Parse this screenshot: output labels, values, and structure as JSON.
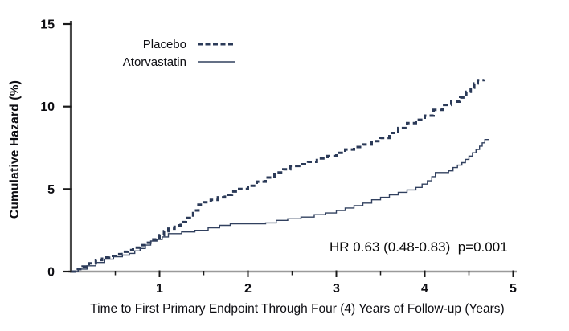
{
  "figure": {
    "background": "#ffffff"
  },
  "chart_data": {
    "type": "line",
    "subtype": "step-cumulative-hazard",
    "title": "",
    "xlabel": "Time to First Primary Endpoint Through Four (4) Years of Follow-up (Years)",
    "ylabel": "Cumulative Hazard (%)",
    "annotation": "HR 0.63 (0.48-0.83)  p=0.001",
    "xlim": [
      0,
      5
    ],
    "ylim": [
      0,
      15
    ],
    "x_major_ticks": [
      1,
      2,
      3,
      4,
      5
    ],
    "x_minor_ticks": [
      0.5,
      1.5,
      2.5,
      3.5,
      4.5
    ],
    "y_ticks": [
      0,
      5,
      10,
      15
    ],
    "grid": false,
    "legend_position": "inside-top-left",
    "axis_color_x": "#9a9a9a",
    "axis_color_y": "#4a4a4a",
    "tick_color": "#1a1a1a",
    "text_color": "#0d0d12",
    "series": [
      {
        "name": "Placebo",
        "style": "dashed",
        "color": "#2b3a58",
        "width": 3,
        "points": [
          [
            0,
            0
          ],
          [
            0.06,
            0.15
          ],
          [
            0.13,
            0.3
          ],
          [
            0.2,
            0.5
          ],
          [
            0.28,
            0.7
          ],
          [
            0.35,
            0.85
          ],
          [
            0.43,
            0.95
          ],
          [
            0.5,
            1.05
          ],
          [
            0.57,
            1.2
          ],
          [
            0.64,
            1.3
          ],
          [
            0.7,
            1.45
          ],
          [
            0.78,
            1.6
          ],
          [
            0.85,
            1.75
          ],
          [
            0.93,
            1.95
          ],
          [
            1.0,
            2.2
          ],
          [
            1.05,
            2.45
          ],
          [
            1.1,
            2.6
          ],
          [
            1.17,
            2.8
          ],
          [
            1.24,
            3.0
          ],
          [
            1.3,
            3.25
          ],
          [
            1.38,
            3.7
          ],
          [
            1.44,
            4.05
          ],
          [
            1.5,
            4.2
          ],
          [
            1.58,
            4.35
          ],
          [
            1.66,
            4.5
          ],
          [
            1.74,
            4.65
          ],
          [
            1.82,
            4.85
          ],
          [
            1.9,
            5.0
          ],
          [
            2.0,
            5.2
          ],
          [
            2.1,
            5.45
          ],
          [
            2.2,
            5.7
          ],
          [
            2.3,
            6.0
          ],
          [
            2.4,
            6.2
          ],
          [
            2.48,
            6.4
          ],
          [
            2.58,
            6.5
          ],
          [
            2.68,
            6.65
          ],
          [
            2.78,
            6.85
          ],
          [
            2.9,
            7.0
          ],
          [
            3.0,
            7.2
          ],
          [
            3.1,
            7.4
          ],
          [
            3.2,
            7.55
          ],
          [
            3.3,
            7.7
          ],
          [
            3.4,
            7.9
          ],
          [
            3.5,
            8.1
          ],
          [
            3.6,
            8.4
          ],
          [
            3.7,
            8.7
          ],
          [
            3.8,
            9.0
          ],
          [
            3.9,
            9.2
          ],
          [
            4.0,
            9.45
          ],
          [
            4.1,
            9.8
          ],
          [
            4.2,
            10.1
          ],
          [
            4.3,
            10.3
          ],
          [
            4.4,
            10.55
          ],
          [
            4.47,
            10.9
          ],
          [
            4.52,
            11.15
          ],
          [
            4.56,
            11.4
          ],
          [
            4.6,
            11.6
          ],
          [
            4.67,
            11.65
          ]
        ]
      },
      {
        "name": "Atorvastatin",
        "style": "solid",
        "color": "#31405f",
        "width": 1.4,
        "points": [
          [
            0,
            0
          ],
          [
            0.08,
            0.15
          ],
          [
            0.18,
            0.35
          ],
          [
            0.28,
            0.55
          ],
          [
            0.38,
            0.75
          ],
          [
            0.48,
            0.9
          ],
          [
            0.58,
            1.0
          ],
          [
            0.66,
            1.1
          ],
          [
            0.72,
            1.25
          ],
          [
            0.78,
            1.4
          ],
          [
            0.84,
            1.6
          ],
          [
            0.9,
            1.85
          ],
          [
            0.97,
            1.95
          ],
          [
            1.03,
            2.1
          ],
          [
            1.1,
            2.3
          ],
          [
            1.25,
            2.4
          ],
          [
            1.4,
            2.5
          ],
          [
            1.55,
            2.65
          ],
          [
            1.68,
            2.8
          ],
          [
            1.8,
            2.9
          ],
          [
            2.2,
            2.95
          ],
          [
            2.32,
            3.1
          ],
          [
            2.45,
            3.2
          ],
          [
            2.6,
            3.3
          ],
          [
            2.75,
            3.45
          ],
          [
            2.88,
            3.55
          ],
          [
            3.0,
            3.7
          ],
          [
            3.1,
            3.85
          ],
          [
            3.2,
            4.0
          ],
          [
            3.3,
            4.15
          ],
          [
            3.4,
            4.35
          ],
          [
            3.5,
            4.5
          ],
          [
            3.6,
            4.65
          ],
          [
            3.7,
            4.8
          ],
          [
            3.8,
            4.95
          ],
          [
            3.9,
            5.1
          ],
          [
            3.97,
            5.3
          ],
          [
            4.03,
            5.5
          ],
          [
            4.08,
            5.75
          ],
          [
            4.12,
            6.0
          ],
          [
            4.27,
            6.1
          ],
          [
            4.32,
            6.3
          ],
          [
            4.37,
            6.45
          ],
          [
            4.42,
            6.6
          ],
          [
            4.46,
            6.8
          ],
          [
            4.5,
            7.0
          ],
          [
            4.54,
            7.2
          ],
          [
            4.58,
            7.4
          ],
          [
            4.62,
            7.6
          ],
          [
            4.65,
            7.8
          ],
          [
            4.68,
            8.0
          ],
          [
            4.73,
            8.0
          ]
        ]
      }
    ]
  }
}
